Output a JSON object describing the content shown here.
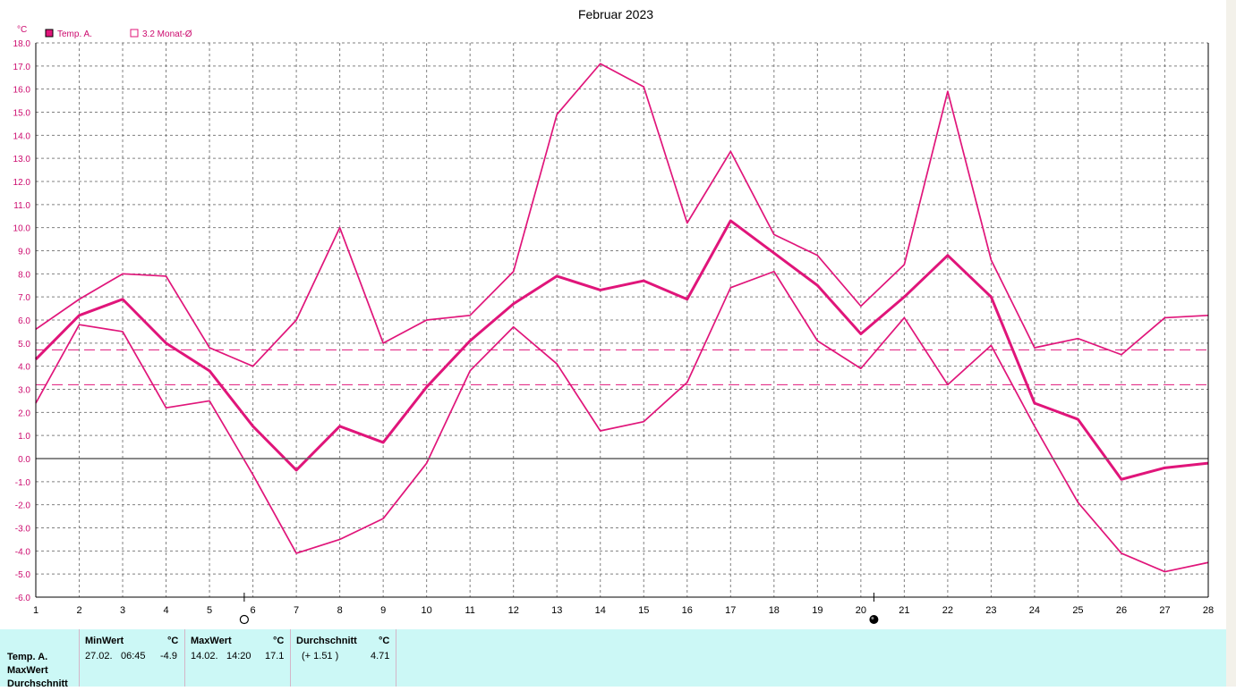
{
  "chart_data": {
    "type": "line",
    "title": "Februar 2023",
    "ylabel": "°C",
    "x": [
      1,
      2,
      3,
      4,
      5,
      6,
      7,
      8,
      9,
      10,
      11,
      12,
      13,
      14,
      15,
      16,
      17,
      18,
      19,
      20,
      21,
      22,
      23,
      24,
      25,
      26,
      27,
      28
    ],
    "ylim": [
      -6.0,
      18.0
    ],
    "ytick_step": 1.0,
    "grid": true,
    "legend": [
      {
        "label": "Temp. A.",
        "marker": "filled-square"
      },
      {
        "label": "3.2 Monat-Ø",
        "marker": "hollow-square"
      }
    ],
    "series": [
      {
        "name": "Temp. A.",
        "role": "max",
        "values": [
          5.6,
          6.9,
          8.0,
          7.9,
          4.8,
          4.0,
          6.0,
          10.0,
          5.0,
          6.0,
          6.2,
          8.1,
          14.9,
          17.1,
          16.1,
          10.2,
          13.3,
          9.7,
          8.8,
          6.6,
          8.4,
          15.9,
          8.6,
          4.8,
          5.2,
          4.5,
          6.1,
          6.2
        ],
        "thickness": "thin"
      },
      {
        "name": "Temp. A.",
        "role": "mean",
        "values": [
          4.3,
          6.2,
          6.9,
          5.0,
          3.8,
          1.4,
          -0.5,
          1.4,
          0.7,
          3.1,
          5.1,
          6.7,
          7.9,
          7.3,
          7.7,
          6.9,
          10.3,
          8.9,
          7.5,
          5.4,
          7.0,
          8.8,
          7.0,
          2.4,
          1.7,
          -0.9,
          -0.4,
          -0.2
        ],
        "thickness": "thick"
      },
      {
        "name": "Temp. A.",
        "role": "min",
        "values": [
          2.4,
          5.8,
          5.5,
          2.2,
          2.5,
          -0.7,
          -4.1,
          -3.5,
          -2.6,
          -0.2,
          3.8,
          5.7,
          4.1,
          1.2,
          1.6,
          3.3,
          7.4,
          8.1,
          5.1,
          3.9,
          6.1,
          3.2,
          4.9,
          1.4,
          -1.9,
          -4.1,
          -4.9,
          -4.5
        ],
        "thickness": "thin"
      }
    ],
    "reference_lines": [
      {
        "value": 4.71,
        "style": "dashed",
        "label": "Durchschnitt"
      },
      {
        "value": 3.2,
        "style": "dashed",
        "label": "3.2 Monat-Ø"
      }
    ],
    "moon_phases": [
      {
        "day": 5.8,
        "phase": "full"
      },
      {
        "day": 20.3,
        "phase": "new"
      }
    ]
  },
  "colors": {
    "series": "#e0157a",
    "legend_text": "#cc0a6e",
    "axis": "#000000",
    "grid": "#808080",
    "zero_line": "#606060",
    "panel_bg": "#ccf8f6"
  },
  "stats": {
    "row_labels": [
      "Temp. A.",
      "MaxWert",
      "Durchschnitt"
    ],
    "min": {
      "header": "MinWert",
      "unit": "°C",
      "date": "27.02.",
      "time": "06:45",
      "value": "-4.9"
    },
    "max": {
      "header": "MaxWert",
      "unit": "°C",
      "date": "14.02.",
      "time": "14:20",
      "value": "17.1"
    },
    "avg": {
      "header": "Durchschnitt",
      "unit": "°C",
      "delta": "(+ 1.51 )",
      "value": "4.71"
    }
  }
}
